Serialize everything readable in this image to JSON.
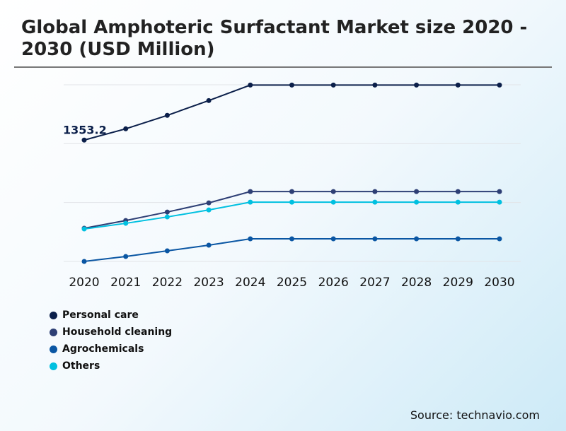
{
  "chart_data": {
    "type": "line",
    "title": "Global Amphoteric Surfactant Market size 2020 - 2030 (USD Million)",
    "x": [
      "2020",
      "2021",
      "2022",
      "2023",
      "2024",
      "2025",
      "2026",
      "2027",
      "2028",
      "2029",
      "2030"
    ],
    "ylim": [
      0,
      1970
    ],
    "grid": true,
    "legend_position": "bottom-left",
    "annotations": [
      {
        "series": "Personal care",
        "x": "2020",
        "text": "1353.2"
      }
    ],
    "series": [
      {
        "name": "Personal care",
        "color": "#0b1f4a",
        "values": [
          1353.2,
          1479,
          1629,
          1794,
          1967,
          1967,
          1967,
          1967,
          1967,
          1967,
          1967
        ]
      },
      {
        "name": "Household cleaning",
        "color": "#2e3f75",
        "values": [
          370,
          456,
          551,
          653,
          779,
          779,
          779,
          779,
          779,
          779,
          779
        ]
      },
      {
        "name": "Agrochemicals",
        "color": "#0a56a3",
        "values": [
          0,
          55,
          118,
          181,
          252,
          252,
          252,
          252,
          252,
          252,
          252
        ]
      },
      {
        "name": "Others",
        "color": "#00c0e0",
        "values": [
          362,
          425,
          496,
          574,
          661,
          661,
          661,
          661,
          661,
          661,
          661
        ]
      }
    ]
  },
  "source": "Source: technavio.com"
}
